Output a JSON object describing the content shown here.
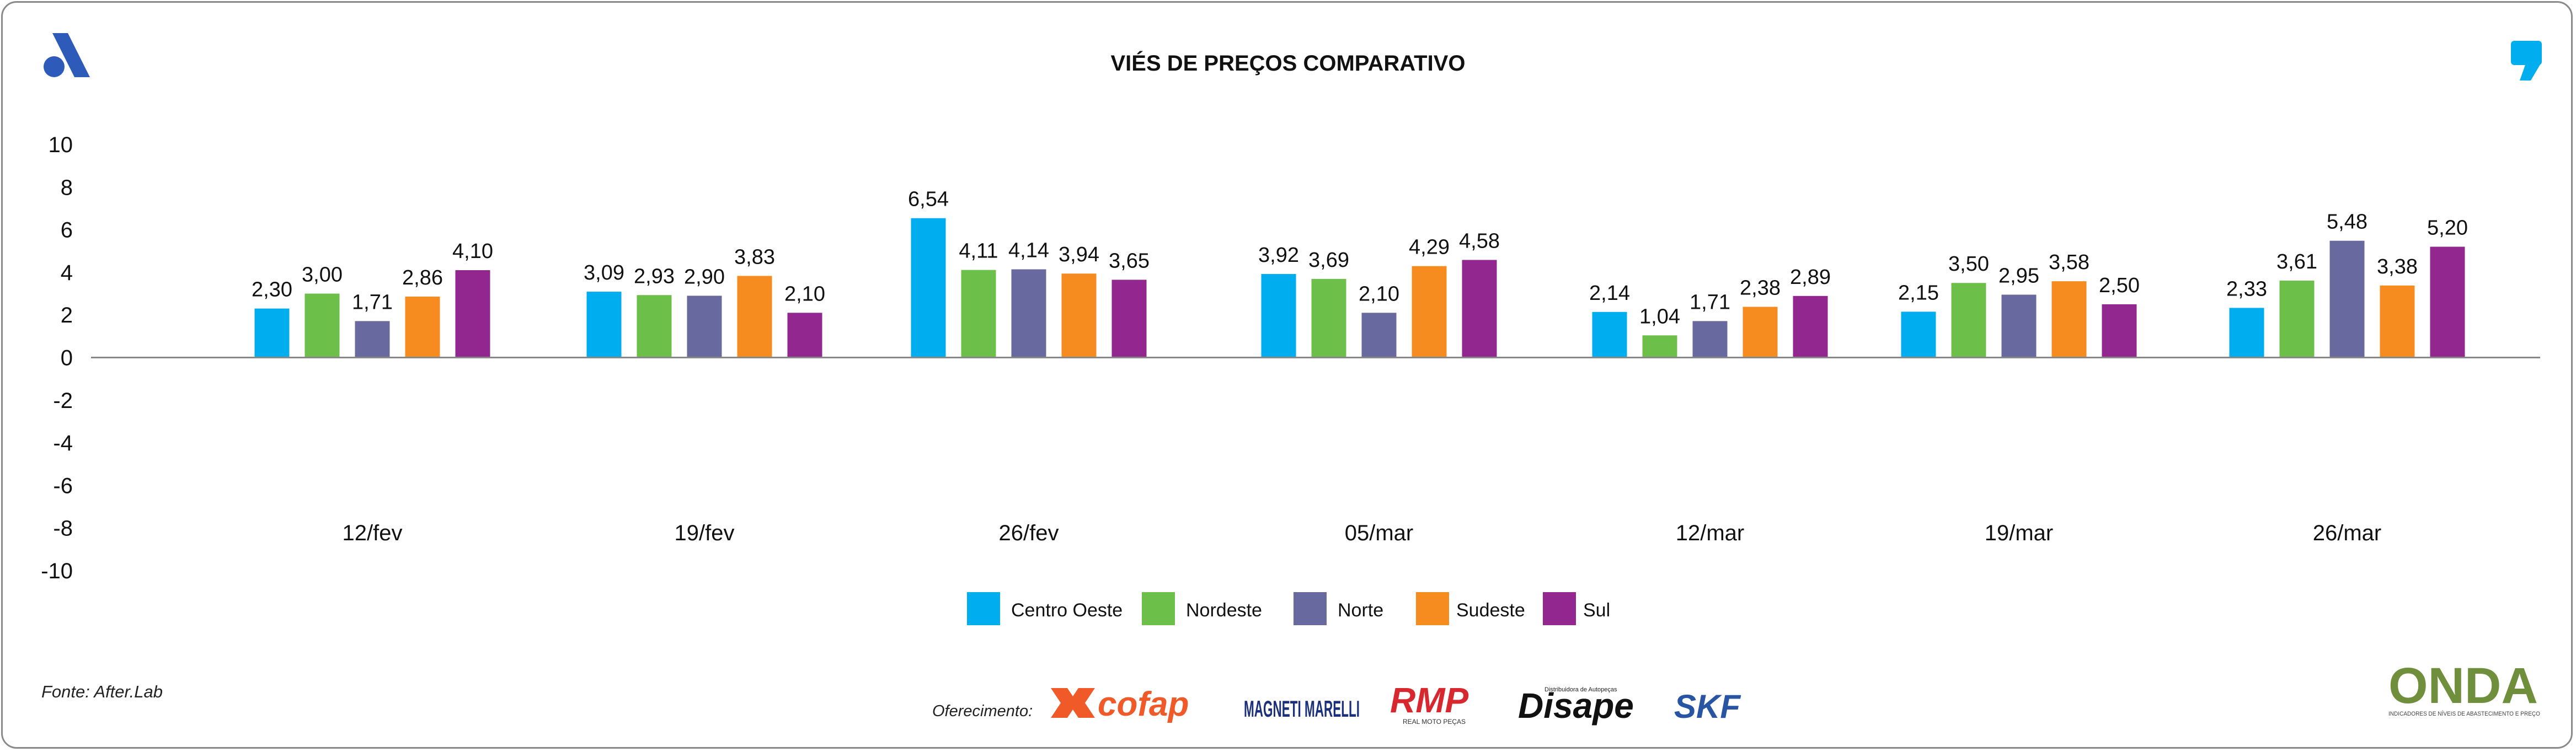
{
  "header": {
    "title": "VIÉS DE PREÇOS COMPARATIVO"
  },
  "footer": {
    "source": "Fonte: After.Lab",
    "sponsor_label": "Oferecimento:",
    "sponsors": [
      "cofap",
      "MAGNETI MARELLI",
      "RMP",
      "Disape",
      "SKF"
    ],
    "rmp_tagline": "REAL MOTO PEÇAS",
    "disape_tagline": "Distribuidora de Autopeças",
    "onda_wordmark": "ONDA",
    "onda_tagline": "INDICADORES DE NÍVEIS DE ABASTECIMENTO E PREÇO"
  },
  "colors": {
    "Centro Oeste": "#00AEEF",
    "Nordeste": "#6CC04A",
    "Norte": "#67699F",
    "Sudeste": "#F68B1F",
    "Sul": "#92278F",
    "brand_blue": "#2E5BBA",
    "cofap_orange": "#F05A28",
    "magneti_blue": "#1B2F7A",
    "rmp_red": "#D7282F",
    "skf_blue": "#2754A3",
    "onda_green": "#6F8F3C",
    "onda_blue": "#2E86C1"
  },
  "chart_data": {
    "type": "bar",
    "title": "VIÉS DE PREÇOS COMPARATIVO",
    "xlabel": "",
    "ylabel": "",
    "ylim": [
      -10,
      10
    ],
    "yticks": [
      "10",
      "8",
      "6",
      "4",
      "2",
      "0",
      "-2",
      "-4",
      "-6",
      "-8",
      "-10"
    ],
    "categories": [
      "12/fev",
      "19/fev",
      "26/fev",
      "05/mar",
      "12/mar",
      "19/mar",
      "26/mar"
    ],
    "series": [
      {
        "name": "Centro Oeste",
        "values": [
          2.3,
          3.09,
          6.54,
          3.92,
          2.14,
          2.15,
          2.33
        ],
        "labels": [
          "2,30",
          "3,09",
          "6,54",
          "3,92",
          "2,14",
          "2,15",
          "2,33"
        ]
      },
      {
        "name": "Nordeste",
        "values": [
          3.0,
          2.93,
          4.11,
          3.69,
          1.04,
          3.5,
          3.61
        ],
        "labels": [
          "3,00",
          "2,93",
          "4,11",
          "3,69",
          "1,04",
          "3,50",
          "3,61"
        ]
      },
      {
        "name": "Norte",
        "values": [
          1.71,
          2.9,
          4.14,
          2.1,
          1.71,
          2.95,
          5.48
        ],
        "labels": [
          "1,71",
          "2,90",
          "4,14",
          "2,10",
          "1,71",
          "2,95",
          "5,48"
        ]
      },
      {
        "name": "Sudeste",
        "values": [
          2.86,
          3.83,
          3.94,
          4.29,
          2.38,
          3.58,
          3.38
        ],
        "labels": [
          "2,86",
          "3,83",
          "3,94",
          "4,29",
          "2,38",
          "3,58",
          "3,38"
        ]
      },
      {
        "name": "Sul",
        "values": [
          4.1,
          2.1,
          3.65,
          4.58,
          2.89,
          2.5,
          5.2
        ],
        "labels": [
          "4,10",
          "2,10",
          "3,65",
          "4,58",
          "2,89",
          "2,50",
          "5,20"
        ]
      }
    ],
    "legend": [
      "Centro Oeste",
      "Nordeste",
      "Norte",
      "Sudeste",
      "Sul"
    ],
    "legend_position": "bottom-center",
    "grid": false
  }
}
